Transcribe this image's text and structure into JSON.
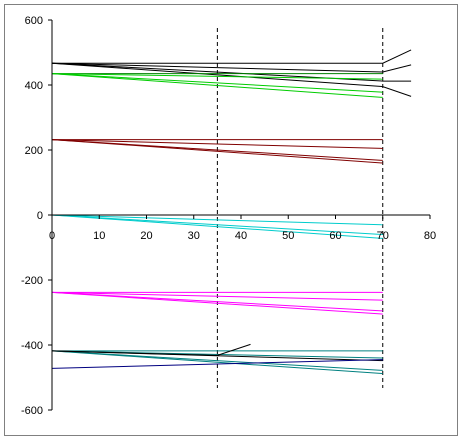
{
  "chart_data": {
    "type": "line",
    "title": "",
    "xlabel": "",
    "ylabel": "",
    "xlim": [
      0,
      80
    ],
    "ylim": [
      -600,
      600
    ],
    "x_ticks": [
      0,
      10,
      20,
      30,
      40,
      50,
      60,
      70,
      80
    ],
    "y_ticks": [
      600,
      400,
      200,
      0,
      -200,
      -400,
      -600
    ],
    "x_tick_labels": [
      "0",
      "10",
      "20",
      "30",
      "40",
      "50",
      "60",
      "70",
      "80"
    ],
    "y_tick_labels": [
      "600",
      "400",
      "200",
      "0",
      "-200",
      "-400",
      "-600"
    ],
    "grid": false,
    "legend": "none",
    "vertical_reference_lines": [
      35,
      70
    ],
    "series": [
      {
        "color": "#000000",
        "points": [
          [
            0,
            467
          ],
          [
            70,
            467
          ],
          [
            76,
            508
          ]
        ]
      },
      {
        "color": "#000000",
        "points": [
          [
            0,
            467
          ],
          [
            70,
            440
          ],
          [
            76,
            462
          ]
        ]
      },
      {
        "color": "#000000",
        "points": [
          [
            0,
            467
          ],
          [
            70,
            412
          ],
          [
            76,
            412
          ]
        ]
      },
      {
        "color": "#000000",
        "points": [
          [
            0,
            467
          ],
          [
            70,
            395
          ],
          [
            76,
            365
          ]
        ]
      },
      {
        "color": "#008000",
        "points": [
          [
            0,
            435
          ],
          [
            70,
            435
          ]
        ]
      },
      {
        "color": "#00CC00",
        "points": [
          [
            0,
            435
          ],
          [
            70,
            418
          ]
        ]
      },
      {
        "color": "#00CC00",
        "points": [
          [
            0,
            435
          ],
          [
            70,
            378
          ]
        ]
      },
      {
        "color": "#00CC00",
        "points": [
          [
            0,
            435
          ],
          [
            70,
            362
          ]
        ]
      },
      {
        "color": "#800000",
        "points": [
          [
            0,
            232
          ],
          [
            70,
            232
          ]
        ]
      },
      {
        "color": "#800000",
        "points": [
          [
            0,
            232
          ],
          [
            70,
            205
          ]
        ]
      },
      {
        "color": "#800000",
        "points": [
          [
            0,
            232
          ],
          [
            70,
            168
          ]
        ]
      },
      {
        "color": "#800000",
        "points": [
          [
            0,
            232
          ],
          [
            70,
            160
          ]
        ]
      },
      {
        "color": "#00CCCC",
        "points": [
          [
            0,
            0
          ],
          [
            70,
            0
          ]
        ]
      },
      {
        "color": "#00CCCC",
        "points": [
          [
            0,
            0
          ],
          [
            70,
            -30
          ]
        ]
      },
      {
        "color": "#00CCCC",
        "points": [
          [
            0,
            0
          ],
          [
            70,
            -60
          ]
        ]
      },
      {
        "color": "#00CCCC",
        "points": [
          [
            0,
            0
          ],
          [
            70,
            -72
          ]
        ]
      },
      {
        "color": "#FF00FF",
        "points": [
          [
            0,
            -238
          ],
          [
            70,
            -238
          ]
        ]
      },
      {
        "color": "#FF00FF",
        "points": [
          [
            0,
            -238
          ],
          [
            70,
            -262
          ]
        ]
      },
      {
        "color": "#FF00FF",
        "points": [
          [
            0,
            -238
          ],
          [
            70,
            -295
          ]
        ]
      },
      {
        "color": "#FF00FF",
        "points": [
          [
            0,
            -238
          ],
          [
            70,
            -305
          ]
        ]
      },
      {
        "color": "#008080",
        "points": [
          [
            0,
            -418
          ],
          [
            70,
            -418
          ]
        ]
      },
      {
        "color": "#008080",
        "points": [
          [
            0,
            -418
          ],
          [
            70,
            -440
          ]
        ]
      },
      {
        "color": "#008080",
        "points": [
          [
            0,
            -418
          ],
          [
            70,
            -478
          ]
        ]
      },
      {
        "color": "#008080",
        "points": [
          [
            0,
            -418
          ],
          [
            70,
            -488
          ]
        ]
      },
      {
        "color": "#000000",
        "points": [
          [
            0,
            -418
          ],
          [
            35,
            -432
          ],
          [
            42,
            -398
          ]
        ]
      },
      {
        "color": "#000000",
        "points": [
          [
            0,
            -418
          ],
          [
            70,
            -448
          ]
        ]
      },
      {
        "color": "#000080",
        "points": [
          [
            0,
            -472
          ],
          [
            70,
            -445
          ]
        ]
      }
    ]
  }
}
